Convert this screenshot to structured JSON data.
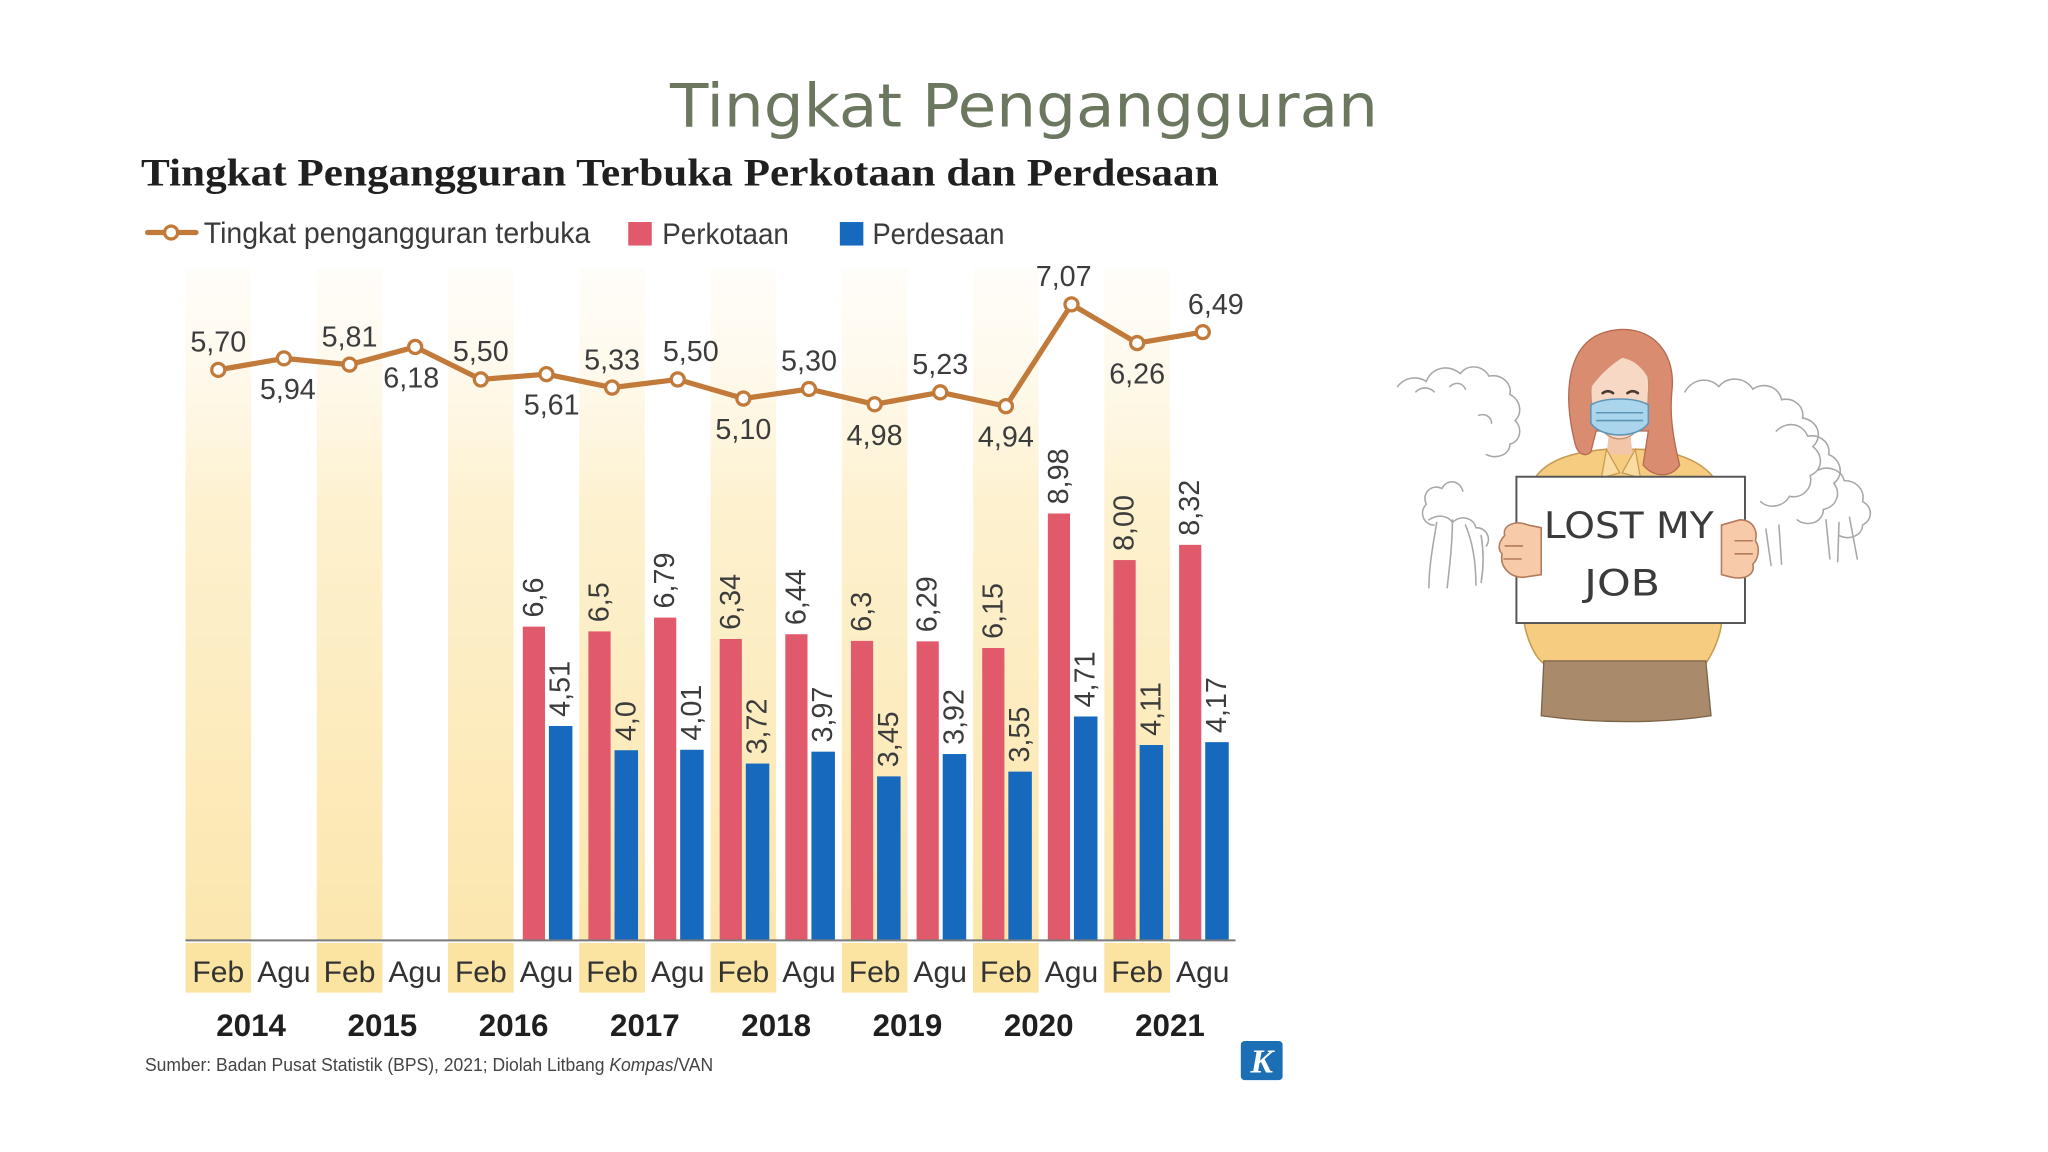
{
  "slide": {
    "title": "Tingkat Pengangguran"
  },
  "colors": {
    "slide_title": "#6c775f"
  },
  "chart_data": {
    "type": "bar",
    "title": "Tingkat Pengangguran Terbuka Perkotaan dan Perdesaan",
    "categories": [
      "Feb",
      "Agu",
      "Feb",
      "Agu",
      "Feb",
      "Agu",
      "Feb",
      "Agu",
      "Feb",
      "Agu",
      "Feb",
      "Agu",
      "Feb",
      "Agu",
      "Feb",
      "Agu"
    ],
    "years": [
      "2014",
      "2015",
      "2016",
      "2017",
      "2018",
      "2019",
      "2020",
      "2021"
    ],
    "band_color": "#fbe3a1",
    "legend_placement": "top-left",
    "grid": false,
    "series": [
      {
        "name": "Tingkat pengangguran terbuka",
        "type": "line",
        "color": "#c27a3a",
        "values": [
          5.7,
          5.94,
          5.81,
          6.18,
          5.5,
          5.61,
          5.33,
          5.5,
          5.1,
          5.3,
          4.98,
          5.23,
          4.94,
          7.07,
          6.26,
          6.49
        ],
        "labels": [
          "5,70",
          "5,94",
          "5,81",
          "6,18",
          "5,50",
          "5,61",
          "5,33",
          "5,50",
          "5,10",
          "5,30",
          "4,98",
          "5,23",
          "4,94",
          "7,07",
          "6,26",
          "6,49"
        ]
      },
      {
        "name": "Perkotaan",
        "type": "bar",
        "color": "#e15a6b",
        "values": [
          null,
          null,
          null,
          null,
          null,
          6.6,
          6.5,
          6.79,
          6.34,
          6.44,
          6.3,
          6.29,
          6.15,
          8.98,
          8.0,
          8.32
        ],
        "labels": [
          null,
          null,
          null,
          null,
          null,
          "6,6",
          "6,5",
          "6,79",
          "6,34",
          "6,44",
          "6,3",
          "6,29",
          "6,15",
          "8,98",
          "8,00",
          "8,32"
        ]
      },
      {
        "name": "Perdesaan",
        "type": "bar",
        "color": "#1769bd",
        "values": [
          null,
          null,
          null,
          null,
          null,
          4.51,
          4.0,
          4.01,
          3.72,
          3.97,
          3.45,
          3.92,
          3.55,
          4.71,
          4.11,
          4.17
        ],
        "labels": [
          null,
          null,
          null,
          null,
          null,
          "4,51",
          "4,0",
          "4,01",
          "3,72",
          "3,97",
          "3,45",
          "3,92",
          "3,55",
          "4,71",
          "4,11",
          "4,17"
        ]
      }
    ],
    "source": {
      "text": "Sumber: Badan Pusat Statistik (BPS), 2021; Diolah Litbang ",
      "italic": "Kompas",
      "suffix": "/VAN"
    },
    "logo_letter": "K",
    "logo_color": "#1d6fb5"
  },
  "illustration": {
    "sign_line1": "LOST MY",
    "sign_line2": "JOB"
  }
}
